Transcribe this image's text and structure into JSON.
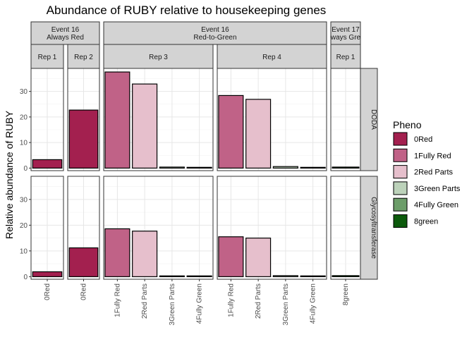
{
  "chart_data": {
    "type": "bar",
    "title": "Abundance of RUBY relative to housekeeping genes",
    "ylabel": "Relative abundance of RUBY",
    "xlabel": "",
    "ylim": [
      -1,
      39
    ],
    "yticks": [
      0,
      10,
      20,
      30
    ],
    "grid": true,
    "legend": {
      "title": "Pheno",
      "placement": "right",
      "items": [
        {
          "label": "0Red",
          "color": "#A3204F"
        },
        {
          "label": "1Fully Red",
          "color": "#C06287"
        },
        {
          "label": "2Red Parts",
          "color": "#E6BFCC"
        },
        {
          "label": "3Green Parts",
          "color": "#BCD2BA"
        },
        {
          "label": "4Fully Green",
          "color": "#6C9D69"
        },
        {
          "label": "8green",
          "color": "#0C5A0C"
        }
      ]
    },
    "column_groups": [
      {
        "label_lines": [
          "Event 16",
          "Always Red"
        ],
        "panels": [
          0,
          1
        ]
      },
      {
        "label_lines": [
          "Event 16",
          "Red-to-Green"
        ],
        "panels": [
          2,
          3
        ]
      },
      {
        "label_lines": [
          "Event 17",
          "ways Gre"
        ],
        "panels": [
          4
        ]
      }
    ],
    "rows": [
      "DODA",
      "Glycosyltransferase"
    ],
    "panels": [
      {
        "rep": "Rep 1",
        "categories": [
          "0Red"
        ],
        "values": {
          "DODA": [
            3.3
          ],
          "Glycosyltransferase": [
            1.9
          ]
        }
      },
      {
        "rep": "Rep 2",
        "categories": [
          "0Red"
        ],
        "values": {
          "DODA": [
            22.7
          ],
          "Glycosyltransferase": [
            11.2
          ]
        }
      },
      {
        "rep": "Rep 3",
        "categories": [
          "1Fully Red",
          "2Red Parts",
          "3Green Parts",
          "4Fully Green"
        ],
        "values": {
          "DODA": [
            37.6,
            32.9,
            0.4,
            0.3
          ],
          "Glycosyltransferase": [
            18.6,
            17.7,
            0.3,
            0.3
          ]
        }
      },
      {
        "rep": "Rep 4",
        "categories": [
          "1Fully Red",
          "2Red Parts",
          "3Green Parts",
          "4Fully Green"
        ],
        "values": {
          "DODA": [
            28.4,
            26.9,
            0.6,
            0.3
          ],
          "Glycosyltransferase": [
            15.5,
            15.0,
            0.4,
            0.3
          ]
        }
      },
      {
        "rep": "Rep 1",
        "categories": [
          "8green"
        ],
        "values": {
          "DODA": [
            0.4
          ],
          "Glycosyltransferase": [
            0.4
          ]
        }
      }
    ]
  }
}
